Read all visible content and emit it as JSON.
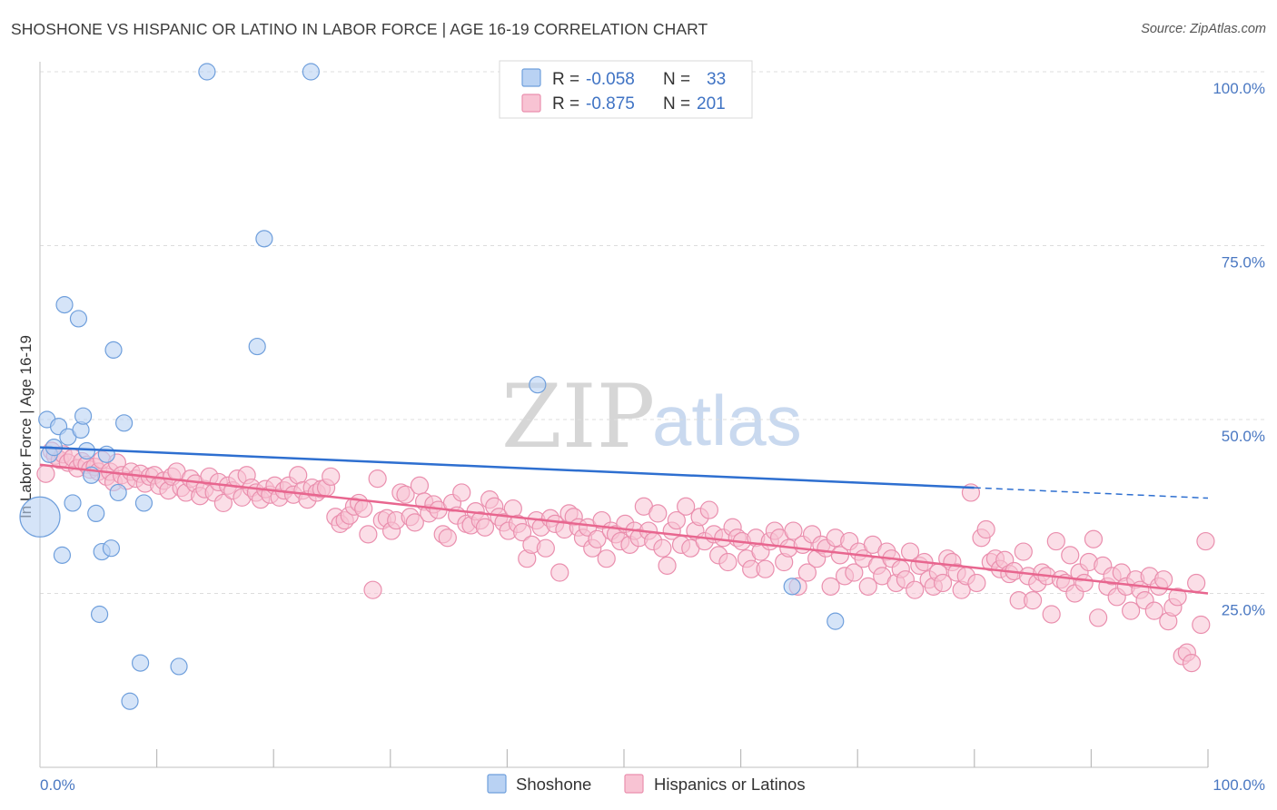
{
  "title": "SHOSHONE VS HISPANIC OR LATINO IN LABOR FORCE | AGE 16-19 CORRELATION CHART",
  "source": "Source: ZipAtlas.com",
  "watermark": {
    "zip": "ZIP",
    "atlas": "atlas"
  },
  "colors": {
    "shoshone_fill": "#b9d2f3",
    "shoshone_stroke": "#6f9fdc",
    "shoshone_line": "#2e6fd0",
    "hispanic_fill": "#f8c3d3",
    "hispanic_stroke": "#ea8fae",
    "hispanic_line": "#e8668f",
    "tick_text": "#4a78c2",
    "grid": "#dddddd"
  },
  "legend": {
    "shoshone": {
      "r_label": "R =",
      "r_value": "-0.058",
      "n_label": "N =",
      "n_value": "33"
    },
    "hispanic": {
      "r_label": "R =",
      "r_value": "-0.875",
      "n_label": "N =",
      "n_value": "201"
    }
  },
  "bottom_legend": {
    "shoshone": "Shoshone",
    "hispanic": "Hispanics or Latinos"
  },
  "chart_data": {
    "type": "scatter",
    "title": "SHOSHONE VS HISPANIC OR LATINO IN LABOR FORCE | AGE 16-19 CORRELATION CHART",
    "xlabel": "",
    "ylabel": "In Labor Force | Age 16-19",
    "xlim": [
      0,
      100
    ],
    "ylim": [
      0,
      100
    ],
    "x_tick_labels": [
      "0.0%",
      "100.0%"
    ],
    "y_ticks": [
      25,
      50,
      75,
      100
    ],
    "y_tick_labels": [
      "25.0%",
      "50.0%",
      "75.0%",
      "100.0%"
    ],
    "grid": "horizontal dashed",
    "legend_placement": "top-center",
    "series": [
      {
        "name": "Shoshone",
        "r": -0.058,
        "n": 33,
        "trend": {
          "x0": 0,
          "y0": 46.0,
          "x1": 80,
          "y1": 40.2,
          "dashed_to_x": 100,
          "dashed_to_y": 38.7
        },
        "points": [
          [
            0.0,
            36.0,
            22
          ],
          [
            0.6,
            50.0,
            9
          ],
          [
            0.8,
            45.0,
            9
          ],
          [
            1.2,
            46.0,
            9
          ],
          [
            1.6,
            49.0,
            9
          ],
          [
            1.9,
            30.5,
            9
          ],
          [
            2.1,
            66.5,
            9
          ],
          [
            2.4,
            47.5,
            9
          ],
          [
            2.8,
            38.0,
            9
          ],
          [
            3.3,
            64.5,
            9
          ],
          [
            3.5,
            48.5,
            9
          ],
          [
            3.7,
            50.5,
            9
          ],
          [
            4.0,
            45.5,
            9
          ],
          [
            4.4,
            42.0,
            9
          ],
          [
            4.8,
            36.5,
            9
          ],
          [
            5.1,
            22.0,
            9
          ],
          [
            5.3,
            31.0,
            9
          ],
          [
            5.7,
            45.0,
            9
          ],
          [
            6.1,
            31.5,
            9
          ],
          [
            6.3,
            60.0,
            9
          ],
          [
            6.7,
            39.5,
            9
          ],
          [
            7.2,
            49.5,
            9
          ],
          [
            7.7,
            9.5,
            9
          ],
          [
            8.6,
            15.0,
            9
          ],
          [
            8.9,
            38.0,
            9
          ],
          [
            11.9,
            14.5,
            9
          ],
          [
            14.3,
            100.0,
            9
          ],
          [
            18.6,
            60.5,
            9
          ],
          [
            19.2,
            76.0,
            9
          ],
          [
            23.2,
            100.0,
            9
          ],
          [
            42.6,
            55.0,
            9
          ],
          [
            64.4,
            26.0,
            9
          ],
          [
            68.1,
            21.0,
            9
          ]
        ]
      },
      {
        "name": "Hispanics or Latinos",
        "r": -0.875,
        "n": 201,
        "trend": {
          "x0": 0,
          "y0": 43.5,
          "x1": 100,
          "y1": 25.0
        },
        "points": [
          [
            0.5,
            42.2
          ],
          [
            1.0,
            45.5
          ],
          [
            1.3,
            44.8
          ],
          [
            1.7,
            44.2
          ],
          [
            2.0,
            45.0
          ],
          [
            2.4,
            43.8
          ],
          [
            2.8,
            44.5
          ],
          [
            3.2,
            43.0
          ],
          [
            3.6,
            44.0
          ],
          [
            4.0,
            43.5
          ],
          [
            4.3,
            42.8
          ],
          [
            4.7,
            43.2
          ],
          [
            5.0,
            42.5
          ],
          [
            5.3,
            44.2
          ],
          [
            5.7,
            41.8
          ],
          [
            6.0,
            42.5
          ],
          [
            6.3,
            41.0
          ],
          [
            6.6,
            43.8
          ],
          [
            7.0,
            42.0
          ],
          [
            7.4,
            41.2
          ],
          [
            7.8,
            42.5
          ],
          [
            8.2,
            41.5
          ],
          [
            8.6,
            42.2
          ],
          [
            9.0,
            40.8
          ],
          [
            9.4,
            41.8
          ],
          [
            9.8,
            42.0
          ],
          [
            10.2,
            40.5
          ],
          [
            10.6,
            41.2
          ],
          [
            11.0,
            39.8
          ],
          [
            11.3,
            41.8
          ],
          [
            11.7,
            42.5
          ],
          [
            12.1,
            40.2
          ],
          [
            12.5,
            39.5
          ],
          [
            12.9,
            41.5
          ],
          [
            13.3,
            40.8
          ],
          [
            13.7,
            39.0
          ],
          [
            14.1,
            40.0
          ],
          [
            14.5,
            41.8
          ],
          [
            14.9,
            39.5
          ],
          [
            15.3,
            41.0
          ],
          [
            15.7,
            38.0
          ],
          [
            16.1,
            40.5
          ],
          [
            16.5,
            39.8
          ],
          [
            16.9,
            41.5
          ],
          [
            17.3,
            38.8
          ],
          [
            17.7,
            42.0
          ],
          [
            18.1,
            40.2
          ],
          [
            18.5,
            39.5
          ],
          [
            18.9,
            38.5
          ],
          [
            19.3,
            40.0
          ],
          [
            19.7,
            39.2
          ],
          [
            20.1,
            40.5
          ],
          [
            20.5,
            38.8
          ],
          [
            20.9,
            39.8
          ],
          [
            21.3,
            40.5
          ],
          [
            21.7,
            39.2
          ],
          [
            22.1,
            42.0
          ],
          [
            22.5,
            39.8
          ],
          [
            22.9,
            38.5
          ],
          [
            23.3,
            40.2
          ],
          [
            23.7,
            39.5
          ],
          [
            24.1,
            40.0
          ],
          [
            24.5,
            40.2
          ],
          [
            24.9,
            41.8
          ],
          [
            25.3,
            36.0
          ],
          [
            25.7,
            35.0
          ],
          [
            26.1,
            35.5
          ],
          [
            26.5,
            36.2
          ],
          [
            26.9,
            37.5
          ],
          [
            27.3,
            38.0
          ],
          [
            27.7,
            37.2
          ],
          [
            28.1,
            33.5
          ],
          [
            28.5,
            25.5
          ],
          [
            28.9,
            41.5
          ],
          [
            29.3,
            35.5
          ],
          [
            29.7,
            35.8
          ],
          [
            30.1,
            34.0
          ],
          [
            30.5,
            35.5
          ],
          [
            30.9,
            39.5
          ],
          [
            31.3,
            39.2
          ],
          [
            31.7,
            36.0
          ],
          [
            32.1,
            35.2
          ],
          [
            32.5,
            40.5
          ],
          [
            32.9,
            38.2
          ],
          [
            33.3,
            36.5
          ],
          [
            33.7,
            37.8
          ],
          [
            34.1,
            37.0
          ],
          [
            34.5,
            33.5
          ],
          [
            34.9,
            33.0
          ],
          [
            35.3,
            38.0
          ],
          [
            35.7,
            36.2
          ],
          [
            36.1,
            39.5
          ],
          [
            36.5,
            35.0
          ],
          [
            36.9,
            34.8
          ],
          [
            37.3,
            36.8
          ],
          [
            37.7,
            35.5
          ],
          [
            38.1,
            34.5
          ],
          [
            38.5,
            38.5
          ],
          [
            38.9,
            37.5
          ],
          [
            39.3,
            36.0
          ],
          [
            39.7,
            35.2
          ],
          [
            40.1,
            34.0
          ],
          [
            40.5,
            37.2
          ],
          [
            40.9,
            35.0
          ],
          [
            41.3,
            33.8
          ],
          [
            41.7,
            30.0
          ],
          [
            42.1,
            32.0
          ],
          [
            42.5,
            35.5
          ],
          [
            42.9,
            34.5
          ],
          [
            43.3,
            31.5
          ],
          [
            43.7,
            35.8
          ],
          [
            44.1,
            35.0
          ],
          [
            44.5,
            28.0
          ],
          [
            44.9,
            34.2
          ],
          [
            45.3,
            36.5
          ],
          [
            45.7,
            36.0
          ],
          [
            46.1,
            34.5
          ],
          [
            46.5,
            33.0
          ],
          [
            46.9,
            34.5
          ],
          [
            47.3,
            31.5
          ],
          [
            47.7,
            32.8
          ],
          [
            48.1,
            35.5
          ],
          [
            48.5,
            30.0
          ],
          [
            48.9,
            34.0
          ],
          [
            49.3,
            33.5
          ],
          [
            49.7,
            32.5
          ],
          [
            50.1,
            35.0
          ],
          [
            50.5,
            32.0
          ],
          [
            50.9,
            34.0
          ],
          [
            51.3,
            33.0
          ],
          [
            51.7,
            37.5
          ],
          [
            52.1,
            34.0
          ],
          [
            52.5,
            32.5
          ],
          [
            52.9,
            36.5
          ],
          [
            53.3,
            31.5
          ],
          [
            53.7,
            29.0
          ],
          [
            54.1,
            34.0
          ],
          [
            54.5,
            35.5
          ],
          [
            54.9,
            32.0
          ],
          [
            55.3,
            37.5
          ],
          [
            55.7,
            31.5
          ],
          [
            56.1,
            34.0
          ],
          [
            56.5,
            36.0
          ],
          [
            56.9,
            32.5
          ],
          [
            57.3,
            37.0
          ],
          [
            57.7,
            33.5
          ],
          [
            58.1,
            30.5
          ],
          [
            58.5,
            33.0
          ],
          [
            58.9,
            29.5
          ],
          [
            59.3,
            34.5
          ],
          [
            59.7,
            33.0
          ],
          [
            60.1,
            32.5
          ],
          [
            60.5,
            30.0
          ],
          [
            60.9,
            28.5
          ],
          [
            61.3,
            33.0
          ],
          [
            61.7,
            31.0
          ],
          [
            62.1,
            28.5
          ],
          [
            62.5,
            32.5
          ],
          [
            62.9,
            34.0
          ],
          [
            63.3,
            33.0
          ],
          [
            63.7,
            29.5
          ],
          [
            64.1,
            31.5
          ],
          [
            64.5,
            34.0
          ],
          [
            64.9,
            26.0
          ],
          [
            65.3,
            32.0
          ],
          [
            65.7,
            28.0
          ],
          [
            66.1,
            33.5
          ],
          [
            66.5,
            30.0
          ],
          [
            66.9,
            32.0
          ],
          [
            67.3,
            31.5
          ],
          [
            67.7,
            26.0
          ],
          [
            68.1,
            33.0
          ],
          [
            68.5,
            30.5
          ],
          [
            68.9,
            27.5
          ],
          [
            69.3,
            32.5
          ],
          [
            69.7,
            28.0
          ],
          [
            70.1,
            31.0
          ],
          [
            70.5,
            30.0
          ],
          [
            70.9,
            26.0
          ],
          [
            71.3,
            32.0
          ],
          [
            71.7,
            29.0
          ],
          [
            72.1,
            27.5
          ],
          [
            72.5,
            31.0
          ],
          [
            72.9,
            30.0
          ],
          [
            73.3,
            26.5
          ],
          [
            73.7,
            28.5
          ],
          [
            74.1,
            27.0
          ],
          [
            74.5,
            31.0
          ],
          [
            74.9,
            25.5
          ],
          [
            75.3,
            29.0
          ],
          [
            75.7,
            29.5
          ],
          [
            76.1,
            27.0
          ],
          [
            76.5,
            26.0
          ],
          [
            76.9,
            28.0
          ],
          [
            77.3,
            26.5
          ],
          [
            77.7,
            30.0
          ],
          [
            78.1,
            29.5
          ],
          [
            78.5,
            28.0
          ],
          [
            78.9,
            25.5
          ],
          [
            79.3,
            27.5
          ],
          [
            79.7,
            39.5
          ]
        ],
        "tail_points": [
          [
            80.2,
            26.5
          ],
          [
            80.6,
            33.0
          ],
          [
            81.0,
            34.2
          ],
          [
            81.4,
            29.5
          ],
          [
            81.8,
            30.0
          ],
          [
            82.2,
            28.5
          ],
          [
            82.6,
            29.8
          ],
          [
            83.0,
            27.8
          ],
          [
            83.4,
            28.2
          ],
          [
            83.8,
            24.0
          ],
          [
            84.2,
            31.0
          ],
          [
            84.6,
            27.5
          ],
          [
            85.0,
            24.0
          ],
          [
            85.4,
            26.5
          ],
          [
            85.8,
            28.0
          ],
          [
            86.2,
            27.5
          ],
          [
            86.6,
            22.0
          ],
          [
            87.0,
            32.5
          ],
          [
            87.4,
            27.0
          ],
          [
            87.8,
            26.5
          ],
          [
            88.2,
            30.5
          ],
          [
            88.6,
            25.0
          ],
          [
            89.0,
            28.0
          ],
          [
            89.4,
            26.5
          ],
          [
            89.8,
            29.5
          ],
          [
            90.2,
            32.8
          ],
          [
            90.6,
            21.5
          ],
          [
            91.0,
            29.0
          ],
          [
            91.4,
            26.0
          ],
          [
            91.8,
            27.5
          ],
          [
            92.2,
            24.5
          ],
          [
            92.6,
            28.0
          ],
          [
            93.0,
            26.0
          ],
          [
            93.4,
            22.5
          ],
          [
            93.8,
            27.0
          ],
          [
            94.2,
            25.5
          ],
          [
            94.6,
            24.0
          ],
          [
            95.0,
            27.5
          ],
          [
            95.4,
            22.5
          ],
          [
            95.8,
            26.0
          ],
          [
            96.2,
            27.0
          ],
          [
            96.6,
            21.0
          ],
          [
            97.0,
            23.0
          ],
          [
            97.4,
            24.5
          ],
          [
            97.8,
            16.0
          ],
          [
            98.2,
            16.5
          ],
          [
            98.6,
            15.0
          ],
          [
            99.0,
            26.5
          ],
          [
            99.4,
            20.5
          ],
          [
            99.8,
            32.5
          ]
        ]
      }
    ]
  }
}
